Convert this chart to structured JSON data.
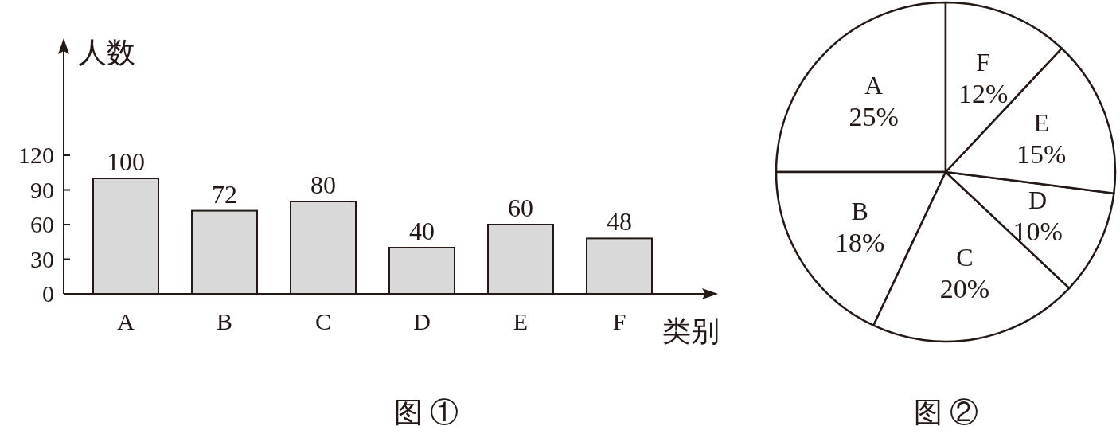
{
  "chart_data": [
    {
      "type": "bar",
      "title": "图 ①",
      "xlabel": "类别",
      "ylabel": "人数",
      "categories": [
        "A",
        "B",
        "C",
        "D",
        "E",
        "F"
      ],
      "values": [
        100,
        72,
        80,
        40,
        60,
        48
      ],
      "color": "#d9d9d9",
      "ylim": [
        0,
        220
      ],
      "yticks": [
        0,
        30,
        60,
        90,
        120
      ],
      "data_labels": true
    },
    {
      "type": "pie",
      "title": "图 ②",
      "categories": [
        "A",
        "B",
        "C",
        "D",
        "E",
        "F"
      ],
      "values": [
        25,
        18,
        20,
        10,
        15,
        12
      ],
      "value_labels": [
        "25%",
        "18%",
        "20%",
        "10%",
        "15%",
        "12%"
      ],
      "colors": [
        "#ffffff",
        "#ffffff",
        "#ffffff",
        "#ffffff",
        "#ffffff",
        "#ffffff"
      ]
    }
  ]
}
